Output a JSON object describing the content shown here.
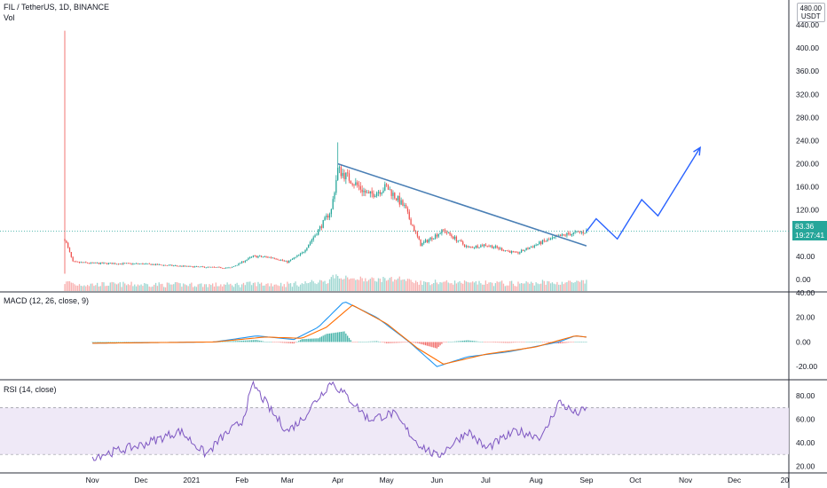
{
  "header": {
    "symbol": "FIL / TetherUS, 1D, BINANCE",
    "volume_label": "Vol",
    "currency_badge": "USDT",
    "top_tick": "480.00"
  },
  "price_tag": {
    "price": "83.36",
    "countdown": "19:27:41"
  },
  "colors": {
    "up": "#26a69a",
    "down": "#ef5350",
    "trendline": "#4a7fb5",
    "macd": "#2196f3",
    "signal": "#ff6d00",
    "rsi": "#7e57c2",
    "rsi_band": "#ede7f6"
  },
  "chart_data": [
    {
      "type": "candlestick",
      "title": "FIL / TetherUS, 1D, BINANCE",
      "x_ticks": [
        "Nov",
        "Dec",
        "2021",
        "Feb",
        "Mar",
        "Apr",
        "May",
        "Jun",
        "Jul",
        "Aug",
        "Sep",
        "Oct",
        "Nov",
        "Dec",
        "20"
      ],
      "y_ticks": [
        "440.00",
        "400.00",
        "360.00",
        "320.00",
        "280.00",
        "240.00",
        "200.00",
        "160.00",
        "120.00",
        "80.00",
        "40.00",
        "0.00"
      ],
      "ylim": [
        -20,
        480
      ],
      "price_path": [
        {
          "date": "2020-10-15",
          "price": 70
        },
        {
          "date": "2020-10-20",
          "price": 30
        },
        {
          "date": "2020-11-01",
          "price": 28
        },
        {
          "date": "2020-12-01",
          "price": 27
        },
        {
          "date": "2021-01-01",
          "price": 22
        },
        {
          "date": "2021-01-25",
          "price": 20
        },
        {
          "date": "2021-02-08",
          "price": 40
        },
        {
          "date": "2021-02-20",
          "price": 38
        },
        {
          "date": "2021-03-01",
          "price": 30
        },
        {
          "date": "2021-03-10",
          "price": 45
        },
        {
          "date": "2021-03-20",
          "price": 85
        },
        {
          "date": "2021-03-28",
          "price": 120
        },
        {
          "date": "2021-04-01",
          "price": 190
        },
        {
          "date": "2021-04-10",
          "price": 170
        },
        {
          "date": "2021-04-20",
          "price": 145
        },
        {
          "date": "2021-05-01",
          "price": 160
        },
        {
          "date": "2021-05-12",
          "price": 125
        },
        {
          "date": "2021-05-22",
          "price": 60
        },
        {
          "date": "2021-06-05",
          "price": 85
        },
        {
          "date": "2021-06-20",
          "price": 55
        },
        {
          "date": "2021-07-01",
          "price": 60
        },
        {
          "date": "2021-07-20",
          "price": 45
        },
        {
          "date": "2021-08-05",
          "price": 65
        },
        {
          "date": "2021-08-20",
          "price": 78
        },
        {
          "date": "2021-09-01",
          "price": 83
        }
      ],
      "spike_high": {
        "date": "2020-10-15",
        "price": 430
      },
      "peak_high": {
        "date": "2021-04-01",
        "price": 237
      },
      "trendline": {
        "start": {
          "date": "2021-04-01",
          "price": 200
        },
        "end": {
          "date": "2021-09-01",
          "price": 58
        }
      },
      "projection": [
        {
          "date": "2021-09-01",
          "price": 83
        },
        {
          "date": "2021-09-07",
          "price": 105
        },
        {
          "date": "2021-09-20",
          "price": 70
        },
        {
          "date": "2021-10-05",
          "price": 138
        },
        {
          "date": "2021-10-15",
          "price": 110
        },
        {
          "date": "2021-11-10",
          "price": 228
        }
      ],
      "last_price": 83.36
    },
    {
      "type": "line",
      "title": "MACD (12, 26, close, 9)",
      "y_ticks": [
        "40.00",
        "20.00",
        "0.00",
        "-20.00"
      ],
      "ylim": [
        -30,
        40
      ],
      "macd_path": [
        {
          "date": "2020-11-01",
          "value": -1
        },
        {
          "date": "2021-01-15",
          "value": 0
        },
        {
          "date": "2021-02-10",
          "value": 5
        },
        {
          "date": "2021-03-05",
          "value": 2
        },
        {
          "date": "2021-03-20",
          "value": 12
        },
        {
          "date": "2021-04-05",
          "value": 33
        },
        {
          "date": "2021-04-25",
          "value": 20
        },
        {
          "date": "2021-05-15",
          "value": 0
        },
        {
          "date": "2021-06-01",
          "value": -20
        },
        {
          "date": "2021-06-20",
          "value": -12
        },
        {
          "date": "2021-07-15",
          "value": -8
        },
        {
          "date": "2021-08-15",
          "value": 0
        },
        {
          "date": "2021-08-25",
          "value": 5
        },
        {
          "date": "2021-09-01",
          "value": 4
        }
      ],
      "signal_path": [
        {
          "date": "2020-11-01",
          "value": -1
        },
        {
          "date": "2021-01-15",
          "value": 0
        },
        {
          "date": "2021-02-15",
          "value": 4
        },
        {
          "date": "2021-03-10",
          "value": 3
        },
        {
          "date": "2021-03-25",
          "value": 12
        },
        {
          "date": "2021-04-10",
          "value": 30
        },
        {
          "date": "2021-05-01",
          "value": 15
        },
        {
          "date": "2021-05-20",
          "value": -5
        },
        {
          "date": "2021-06-05",
          "value": -18
        },
        {
          "date": "2021-07-01",
          "value": -10
        },
        {
          "date": "2021-08-01",
          "value": -4
        },
        {
          "date": "2021-08-25",
          "value": 5
        },
        {
          "date": "2021-09-01",
          "value": 4
        }
      ]
    },
    {
      "type": "line",
      "title": "RSI (14, close)",
      "y_ticks": [
        "80.00",
        "60.00",
        "40.00",
        "20.00"
      ],
      "ylim": [
        15,
        93
      ],
      "bands": [
        30,
        70
      ],
      "rsi_path": [
        {
          "date": "2020-11-01",
          "value": 28
        },
        {
          "date": "2020-12-01",
          "value": 38
        },
        {
          "date": "2020-12-25",
          "value": 50
        },
        {
          "date": "2021-01-10",
          "value": 30
        },
        {
          "date": "2021-01-20",
          "value": 45
        },
        {
          "date": "2021-02-01",
          "value": 58
        },
        {
          "date": "2021-02-08",
          "value": 90
        },
        {
          "date": "2021-02-20",
          "value": 65
        },
        {
          "date": "2021-03-01",
          "value": 50
        },
        {
          "date": "2021-03-10",
          "value": 60
        },
        {
          "date": "2021-03-18",
          "value": 75
        },
        {
          "date": "2021-03-28",
          "value": 92
        },
        {
          "date": "2021-04-10",
          "value": 75
        },
        {
          "date": "2021-04-20",
          "value": 60
        },
        {
          "date": "2021-05-05",
          "value": 65
        },
        {
          "date": "2021-05-20",
          "value": 40
        },
        {
          "date": "2021-06-01",
          "value": 28
        },
        {
          "date": "2021-06-20",
          "value": 50
        },
        {
          "date": "2021-07-01",
          "value": 35
        },
        {
          "date": "2021-07-20",
          "value": 50
        },
        {
          "date": "2021-08-05",
          "value": 45
        },
        {
          "date": "2021-08-15",
          "value": 75
        },
        {
          "date": "2021-08-25",
          "value": 65
        },
        {
          "date": "2021-09-01",
          "value": 68
        }
      ]
    }
  ]
}
